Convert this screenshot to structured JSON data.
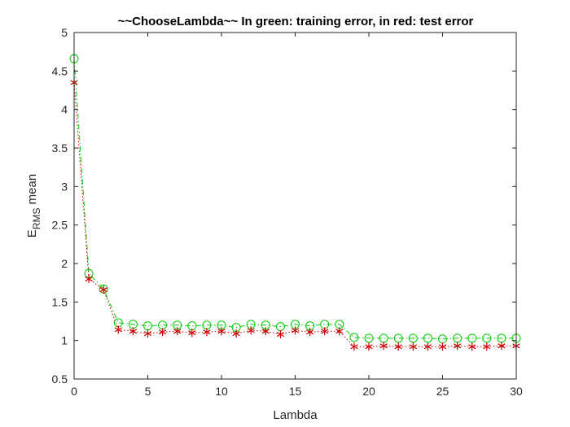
{
  "chart_data": {
    "type": "line",
    "title": "~~ChooseLambda~~ In green: training error, in red: test error",
    "xlabel": "Lambda",
    "ylabel_main": "E",
    "ylabel_sub": "RMS",
    "ylabel_tail": " mean",
    "xlim": [
      0,
      30
    ],
    "ylim": [
      0.5,
      5
    ],
    "xticks": [
      0,
      5,
      10,
      15,
      20,
      25,
      30
    ],
    "yticks": [
      0.5,
      1,
      1.5,
      2,
      2.5,
      3,
      3.5,
      4,
      4.5,
      5
    ],
    "ytick_labels": [
      "0.5",
      "1",
      "1.5",
      "2",
      "2.5",
      "3",
      "3.5",
      "4",
      "4.5",
      "5"
    ],
    "grid": false,
    "x": [
      0,
      1,
      2,
      3,
      4,
      5,
      6,
      7,
      8,
      9,
      10,
      11,
      12,
      13,
      14,
      15,
      16,
      17,
      18,
      19,
      20,
      21,
      22,
      23,
      24,
      25,
      26,
      27,
      28,
      29,
      30
    ],
    "series": [
      {
        "color": "#00cc00",
        "marker": "circle",
        "line_style": "dash-dot",
        "values": [
          4.66,
          1.87,
          1.67,
          1.23,
          1.21,
          1.19,
          1.2,
          1.2,
          1.19,
          1.2,
          1.2,
          1.17,
          1.21,
          1.2,
          1.18,
          1.21,
          1.19,
          1.21,
          1.21,
          1.04,
          1.03,
          1.03,
          1.03,
          1.03,
          1.03,
          1.02,
          1.03,
          1.03,
          1.03,
          1.03,
          1.03
        ]
      },
      {
        "color": "#cc0000",
        "marker": "asterisk",
        "line_style": "dotted",
        "values": [
          4.35,
          1.8,
          1.66,
          1.14,
          1.12,
          1.09,
          1.11,
          1.12,
          1.1,
          1.11,
          1.12,
          1.09,
          1.13,
          1.12,
          1.08,
          1.13,
          1.11,
          1.12,
          1.12,
          0.92,
          0.92,
          0.93,
          0.92,
          0.92,
          0.92,
          0.92,
          0.93,
          0.92,
          0.92,
          0.93,
          0.93
        ]
      }
    ]
  }
}
